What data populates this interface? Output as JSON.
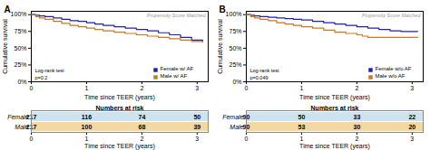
{
  "chart_data": [
    {
      "type": "step",
      "title": "A",
      "xlabel": "Time since TEER (years)",
      "ylabel": "Cumulative survival",
      "xlim": [
        0,
        3.2
      ],
      "xticks": [
        0,
        1,
        2,
        3
      ],
      "ylim": [
        0,
        1.05
      ],
      "yticks": [
        {
          "value": 0.0,
          "label": "0%"
        },
        {
          "value": 0.25,
          "label": "25%"
        },
        {
          "value": 0.5,
          "label": "50%"
        },
        {
          "value": 0.75,
          "label": "75%"
        },
        {
          "value": 1.0,
          "label": "100%"
        }
      ],
      "legend": "lower right",
      "annotations": [
        "Propensity Score Matched",
        "Log-rank test\np=0.2"
      ],
      "series": [
        {
          "name": "Female w/ AF",
          "color": "#2020aa",
          "x": [
            0,
            0.08,
            0.15,
            0.25,
            0.4,
            0.55,
            0.7,
            0.85,
            1.0,
            1.15,
            1.3,
            1.5,
            1.7,
            1.9,
            2.1,
            2.3,
            2.5,
            2.7,
            2.9,
            3.1
          ],
          "values": [
            1.0,
            0.99,
            0.98,
            0.97,
            0.95,
            0.93,
            0.91,
            0.9,
            0.88,
            0.86,
            0.84,
            0.82,
            0.8,
            0.78,
            0.76,
            0.73,
            0.7,
            0.66,
            0.62,
            0.6
          ]
        },
        {
          "name": "Male w/ AF",
          "color": "#c87820",
          "x": [
            0,
            0.08,
            0.15,
            0.25,
            0.4,
            0.55,
            0.7,
            0.85,
            1.0,
            1.15,
            1.3,
            1.5,
            1.7,
            1.9,
            2.1,
            2.3,
            2.5,
            2.7,
            2.9,
            3.1
          ],
          "values": [
            1.0,
            0.97,
            0.95,
            0.93,
            0.9,
            0.87,
            0.84,
            0.82,
            0.8,
            0.78,
            0.76,
            0.74,
            0.72,
            0.7,
            0.68,
            0.66,
            0.64,
            0.62,
            0.6,
            0.59
          ]
        }
      ],
      "risk_table": {
        "title": "Numbers at risk",
        "xlabel": "Time since TEER (years)",
        "xlim": [
          0,
          3.2
        ],
        "x": [
          0,
          1,
          2,
          3
        ],
        "series": [
          {
            "name": "Female",
            "color": "#b8d8ea",
            "values": [
              217,
              116,
              74,
              50
            ]
          },
          {
            "name": "Male",
            "color": "#f0c878",
            "values": [
              217,
              100,
              68,
              39
            ]
          }
        ]
      }
    },
    {
      "type": "step",
      "title": "B",
      "xlabel": "Time since TEER (years)",
      "ylabel": "Cumulative survival",
      "xlim": [
        0,
        3.2
      ],
      "xticks": [
        0,
        1,
        2,
        3
      ],
      "ylim": [
        0,
        1.05
      ],
      "yticks": [
        {
          "value": 0.0,
          "label": "0%"
        },
        {
          "value": 0.25,
          "label": "25%"
        },
        {
          "value": 0.5,
          "label": "50%"
        },
        {
          "value": 0.75,
          "label": "75%"
        },
        {
          "value": 1.0,
          "label": "100%"
        }
      ],
      "legend": "lower right",
      "annotations": [
        "Propensity Score Matched",
        "Log-rank test\np=0.049"
      ],
      "series": [
        {
          "name": "Female w/o AF",
          "color": "#2020aa",
          "x": [
            0,
            0.08,
            0.15,
            0.25,
            0.4,
            0.55,
            0.7,
            0.85,
            1.0,
            1.2,
            1.4,
            1.6,
            1.8,
            2.0,
            2.2,
            2.4,
            2.6,
            2.8,
            3.0,
            3.1
          ],
          "values": [
            1.0,
            0.99,
            0.98,
            0.97,
            0.96,
            0.95,
            0.94,
            0.93,
            0.92,
            0.9,
            0.88,
            0.86,
            0.84,
            0.82,
            0.8,
            0.78,
            0.76,
            0.75,
            0.75,
            0.75
          ]
        },
        {
          "name": "Male w/o AF",
          "color": "#c87820",
          "x": [
            0,
            0.08,
            0.15,
            0.25,
            0.4,
            0.55,
            0.7,
            0.85,
            1.0,
            1.2,
            1.4,
            1.6,
            1.8,
            2.0,
            2.1,
            2.2,
            2.4,
            2.6,
            2.8,
            3.1
          ],
          "values": [
            1.0,
            0.97,
            0.95,
            0.93,
            0.91,
            0.88,
            0.86,
            0.84,
            0.82,
            0.8,
            0.77,
            0.74,
            0.72,
            0.7,
            0.68,
            0.66,
            0.66,
            0.66,
            0.66,
            0.66
          ]
        }
      ],
      "risk_table": {
        "title": "Numbers at risk",
        "xlabel": "Time since TEER (years)",
        "xlim": [
          0,
          3.2
        ],
        "x": [
          0,
          1,
          2,
          3
        ],
        "series": [
          {
            "name": "Female",
            "color": "#b8d8ea",
            "values": [
              90,
              50,
              33,
              22
            ]
          },
          {
            "name": "Male",
            "color": "#f0c878",
            "values": [
              90,
              53,
              30,
              20
            ]
          }
        ]
      }
    }
  ]
}
